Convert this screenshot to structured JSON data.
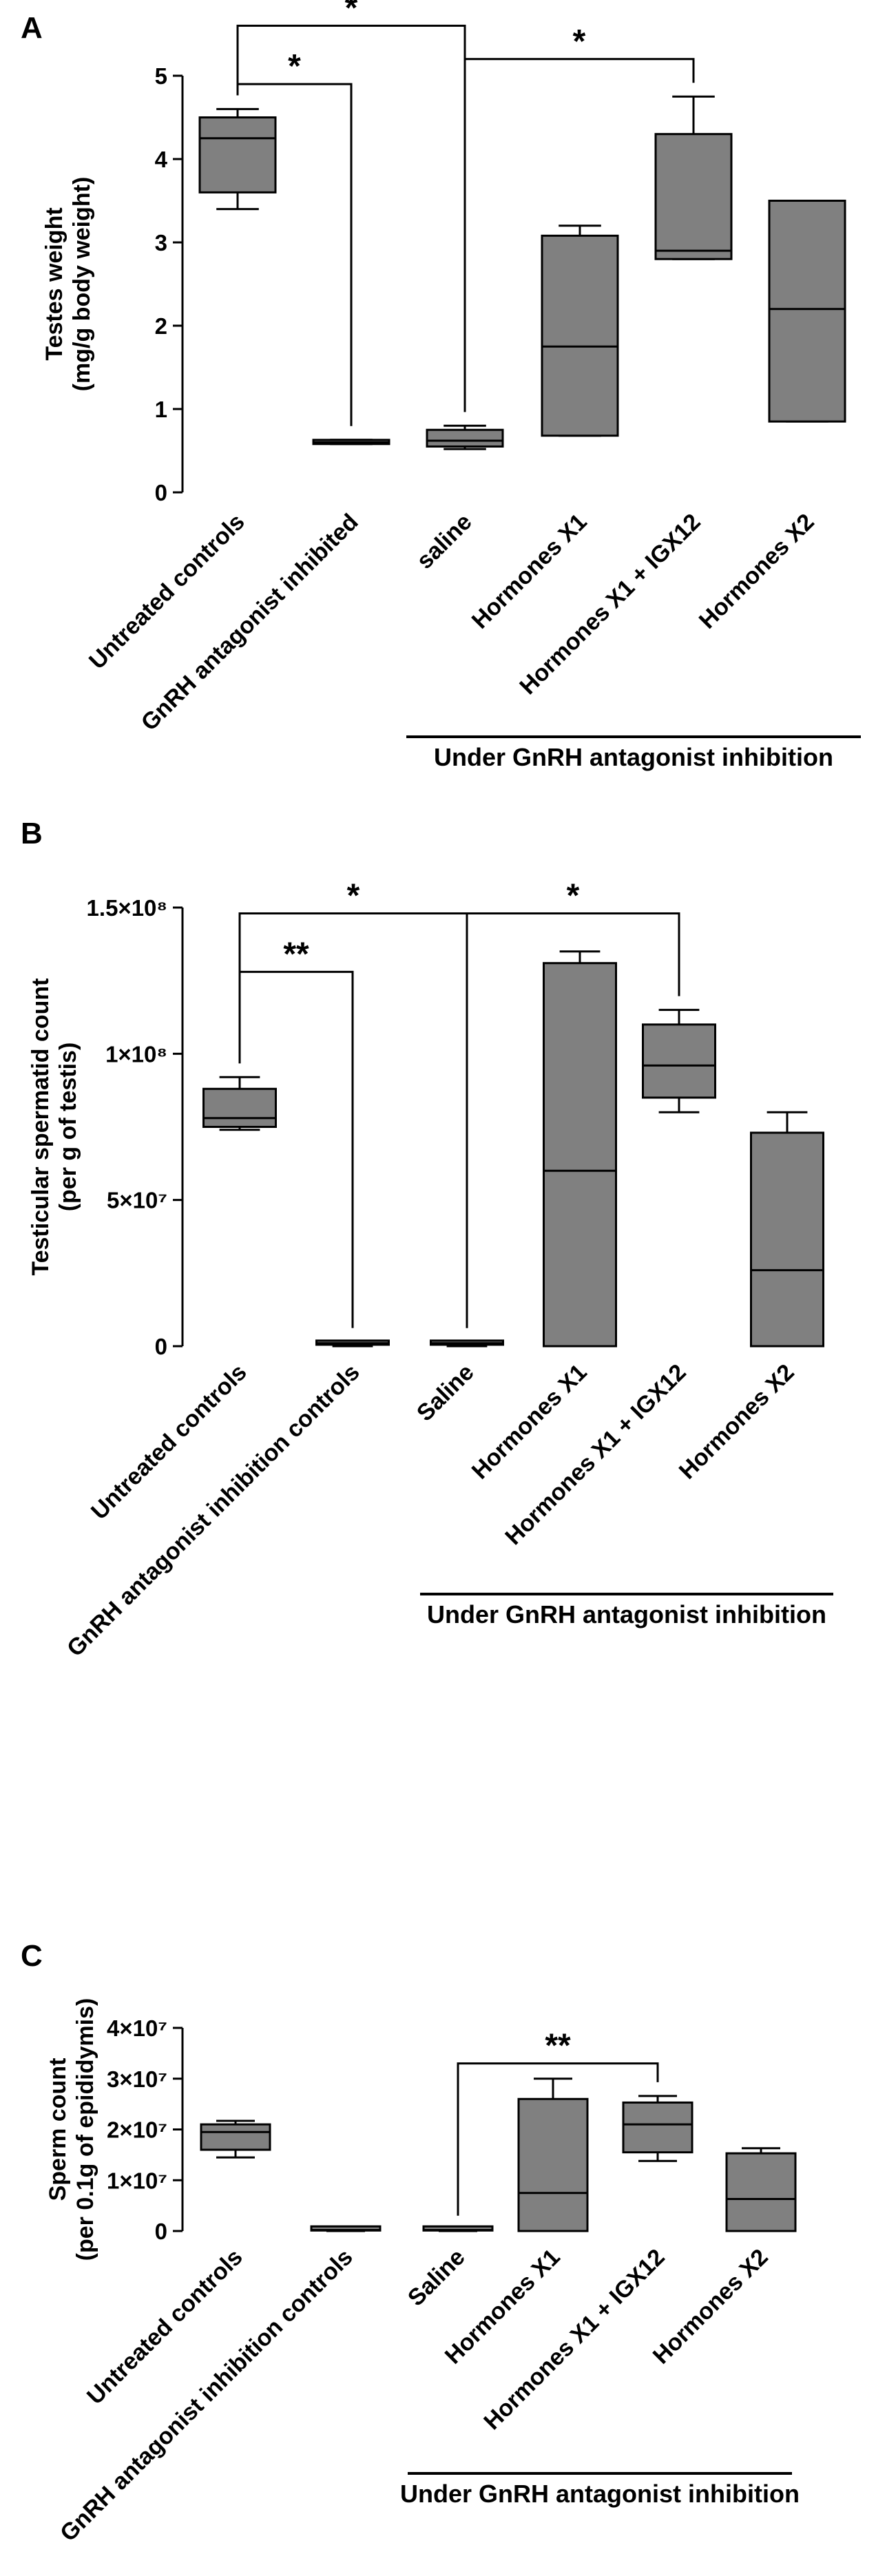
{
  "colors": {
    "box_fill": "#808080",
    "stroke": "#000000",
    "background": "#ffffff"
  },
  "chart_data": [
    {
      "panel": "A",
      "type": "box",
      "ylabel": [
        "Testes weight",
        "(mg/g body weight)"
      ],
      "ylim": [
        0,
        5
      ],
      "yticks": [
        {
          "value": 0,
          "label": "0"
        },
        {
          "value": 1,
          "label": "1"
        },
        {
          "value": 2,
          "label": "2"
        },
        {
          "value": 3,
          "label": "3"
        },
        {
          "value": 4,
          "label": "4"
        },
        {
          "value": 5,
          "label": "5"
        }
      ],
      "categories": [
        "Untreated controls",
        "GnRH antagonist inhibited",
        "saline",
        "Hormones X1",
        "Hormones X1 + IGX12",
        "Hormones X2"
      ],
      "boxes": [
        {
          "min": 3.4,
          "q1": 3.6,
          "median": 4.25,
          "q3": 4.5,
          "max": 4.6
        },
        {
          "min": 0.58,
          "q1": 0.58,
          "median": 0.6,
          "q3": 0.62,
          "max": 0.63
        },
        {
          "min": 0.52,
          "q1": 0.55,
          "median": 0.62,
          "q3": 0.75,
          "max": 0.8
        },
        {
          "min": 0.68,
          "q1": 0.68,
          "median": 1.75,
          "q3": 3.08,
          "max": 3.2
        },
        {
          "min": 2.8,
          "q1": 2.8,
          "median": 2.9,
          "q3": 4.3,
          "max": 4.75
        },
        {
          "min": 0.85,
          "q1": 0.85,
          "median": 2.2,
          "q3": 3.5,
          "max": 3.5
        }
      ],
      "brackets": [
        {
          "from": 0,
          "to": 2,
          "label": "*",
          "y": 5.6
        },
        {
          "from": 0,
          "to": 1,
          "label": "*",
          "y": 4.9
        },
        {
          "from": 2,
          "to": 4,
          "label": "*",
          "y": 5.2
        }
      ],
      "group_label": "Under GnRH antagonist inhibition",
      "group_from": 2,
      "group_to": 5
    },
    {
      "panel": "B",
      "type": "box",
      "ylabel": [
        "Testicular spermatid count",
        "(per g of testis)"
      ],
      "ylim": [
        0,
        150000000
      ],
      "yticks": [
        {
          "value": 0,
          "label": "0"
        },
        {
          "value": 50000000,
          "label": "5×10⁷"
        },
        {
          "value": 100000000,
          "label": "1×10⁸"
        },
        {
          "value": 150000000,
          "label": "1.5×10⁸"
        }
      ],
      "categories": [
        "Untreated controls",
        "GnRH antagonist inhibition controls",
        "Saline",
        "Hormones X1",
        "Hormones X1 + IGX12",
        "Hormones X2"
      ],
      "boxes": [
        {
          "min": 74000000,
          "q1": 75000000,
          "median": 78000000,
          "q3": 88000000,
          "max": 92000000
        },
        {
          "min": 0,
          "q1": 500000,
          "median": 1000000,
          "q3": 1500000,
          "max": 1500000
        },
        {
          "min": 0,
          "q1": 500000,
          "median": 1000000,
          "q3": 1500000,
          "max": 1500000
        },
        {
          "min": 0,
          "q1": 0,
          "median": 60000000,
          "q3": 131000000,
          "max": 135000000
        },
        {
          "min": 80000000,
          "q1": 85000000,
          "median": 96000000,
          "q3": 110000000,
          "max": 115000000
        },
        {
          "min": 0,
          "q1": 0,
          "median": 26000000,
          "q3": 73000000,
          "max": 80000000
        }
      ],
      "brackets": [
        {
          "from": 0,
          "to": 2,
          "label": "*",
          "y": 148000000
        },
        {
          "from": 0,
          "to": 1,
          "label": "**",
          "y": 128000000
        },
        {
          "from": 2,
          "to": 4,
          "label": "*",
          "y": 148000000
        }
      ],
      "group_label": "Under GnRH antagonist inhibition",
      "group_from": 2,
      "group_to": 5
    },
    {
      "panel": "C",
      "type": "box",
      "ylabel": [
        "Sperm count",
        "(per 0.1g of epididymis)"
      ],
      "ylim": [
        0,
        40000000
      ],
      "yticks": [
        {
          "value": 0,
          "label": "0"
        },
        {
          "value": 10000000,
          "label": "1×10⁷"
        },
        {
          "value": 20000000,
          "label": "2×10⁷"
        },
        {
          "value": 30000000,
          "label": "3×10⁷"
        },
        {
          "value": 40000000,
          "label": "4×10⁷"
        }
      ],
      "categories": [
        "Untreated controls",
        "GnRH antagonist inhibition controls",
        "Saline",
        "Hormones X1",
        "Hormones X1 + IGX12",
        "Hormones X2"
      ],
      "boxes": [
        {
          "min": 14500000,
          "q1": 16000000,
          "median": 19500000,
          "q3": 21000000,
          "max": 21700000
        },
        {
          "min": 0,
          "q1": 100000,
          "median": 200000,
          "q3": 300000,
          "max": 300000
        },
        {
          "min": 0,
          "q1": 100000,
          "median": 200000,
          "q3": 300000,
          "max": 300000
        },
        {
          "min": 0,
          "q1": 0,
          "median": 7500000,
          "q3": 26000000,
          "max": 30000000
        },
        {
          "min": 13800000,
          "q1": 15500000,
          "median": 21000000,
          "q3": 25300000,
          "max": 26600000
        },
        {
          "min": 0,
          "q1": 0,
          "median": 6300000,
          "q3": 15300000,
          "max": 16300000
        }
      ],
      "brackets": [
        {
          "from": 2,
          "to": 4,
          "label": "**",
          "y": 33000000
        }
      ],
      "group_label": "Under GnRH antagonist inhibition",
      "group_from": 2,
      "group_to": 5
    }
  ]
}
